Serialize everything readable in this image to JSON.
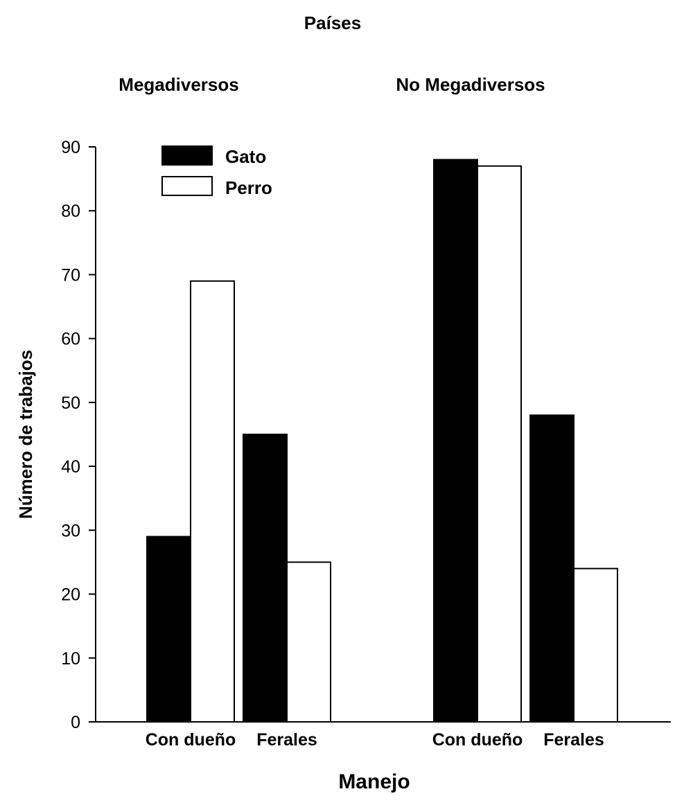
{
  "chart_data": {
    "type": "bar",
    "title": "Países",
    "xlabel": "Manejo",
    "ylabel": "Número de trabajos",
    "ylim": [
      0,
      90
    ],
    "yticks": [
      0,
      10,
      20,
      30,
      40,
      50,
      60,
      70,
      80,
      90
    ],
    "grid": false,
    "legend": "top-left",
    "groups": [
      {
        "name": "Megadiversos",
        "categories": [
          "Con dueño",
          "Ferales"
        ],
        "series": [
          {
            "name": "Gato",
            "values": [
              29,
              45
            ]
          },
          {
            "name": "Perro",
            "values": [
              69,
              25
            ]
          }
        ]
      },
      {
        "name": "No Megadiversos",
        "categories": [
          "Con dueño",
          "Ferales"
        ],
        "series": [
          {
            "name": "Gato",
            "values": [
              88,
              48
            ]
          },
          {
            "name": "Perro",
            "values": [
              87,
              24
            ]
          }
        ]
      }
    ],
    "colors": {
      "Gato": "#000000",
      "Perro": "#ffffff"
    }
  }
}
